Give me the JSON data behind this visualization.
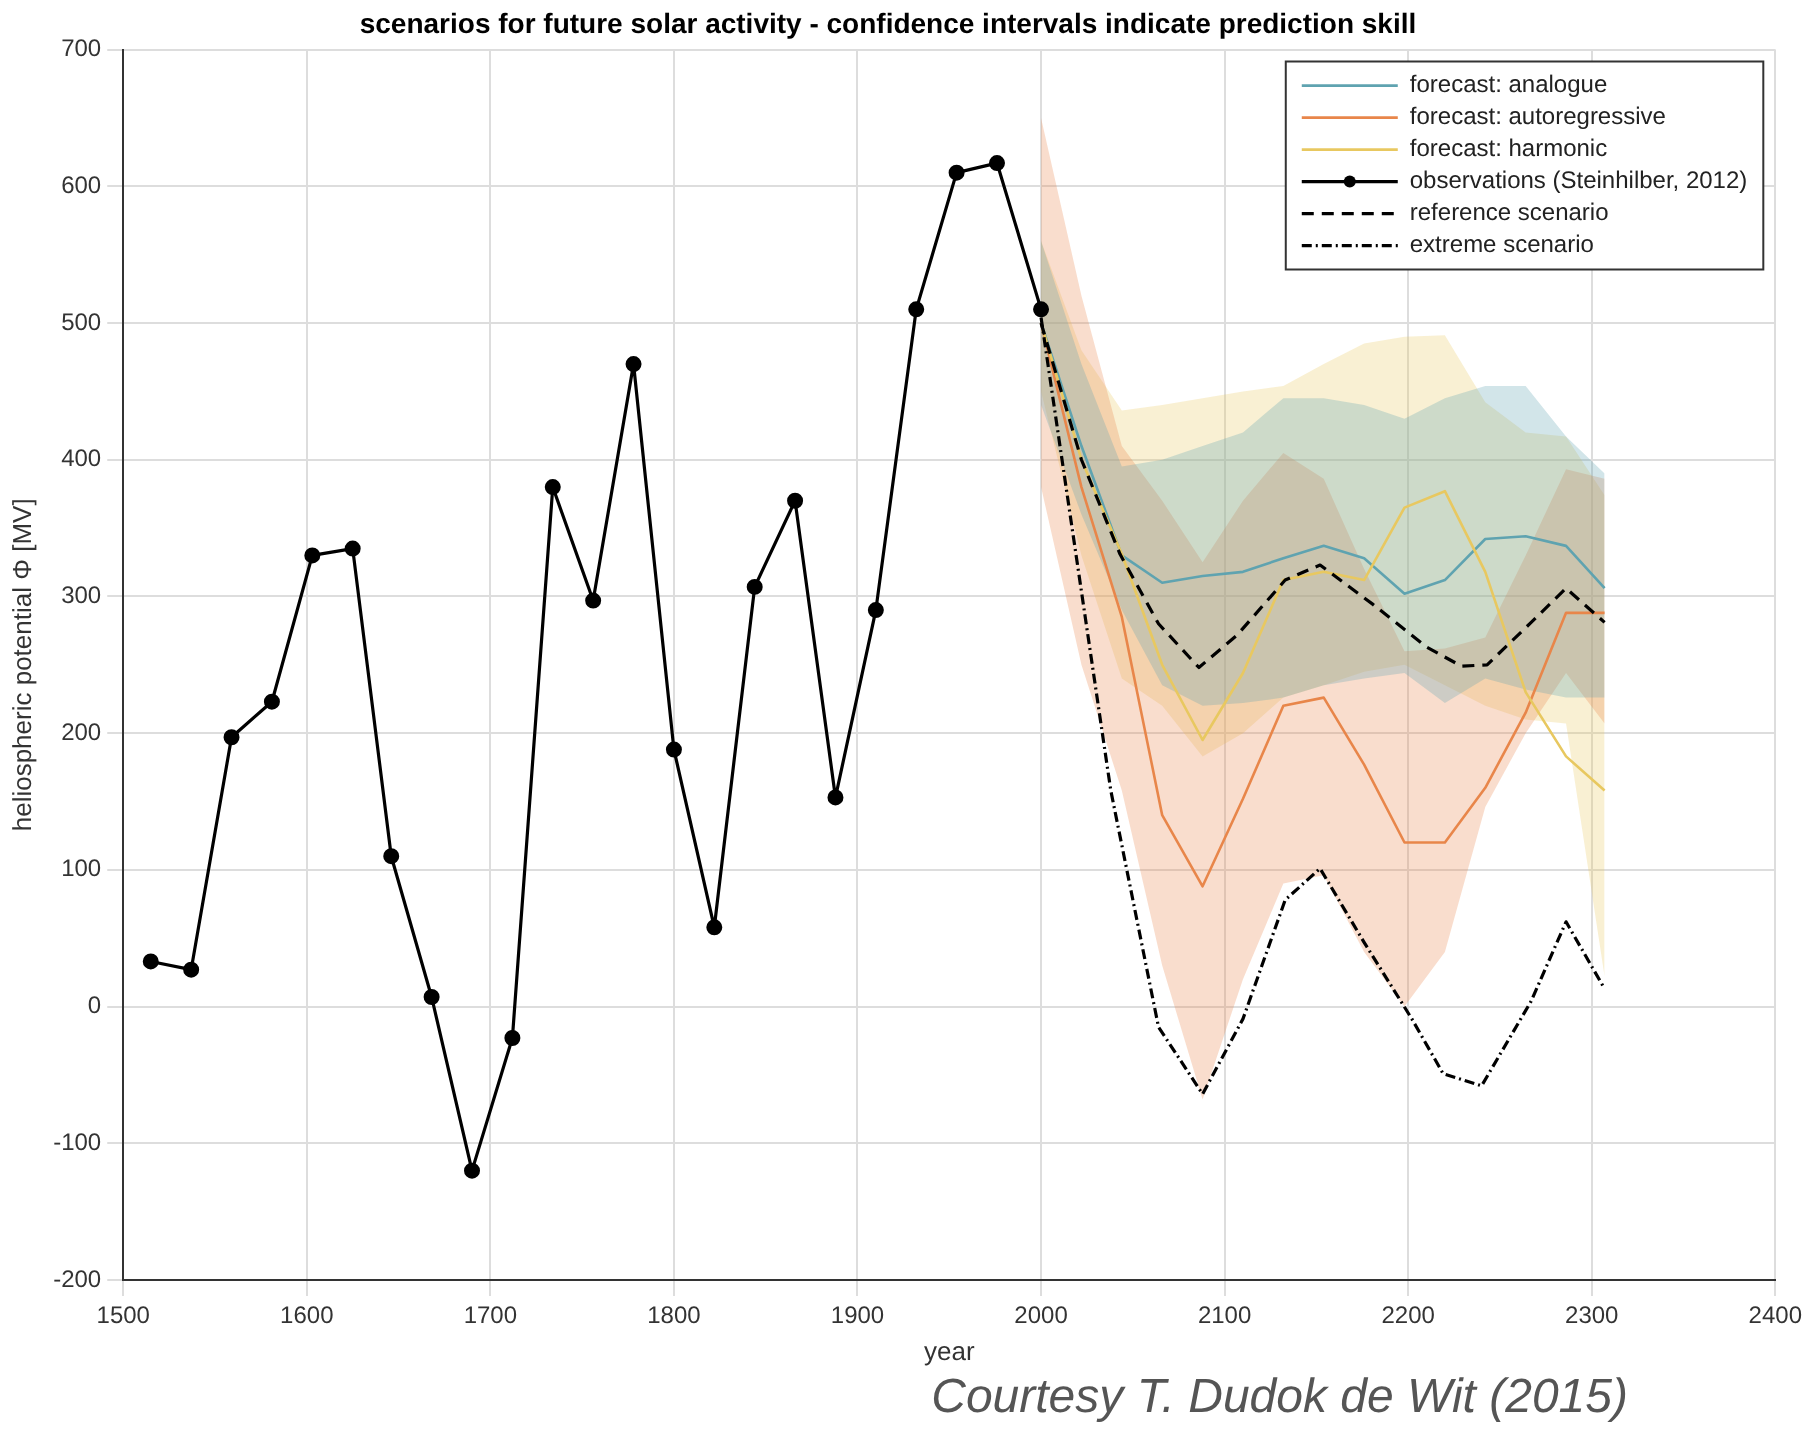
{
  "chart_data": {
    "type": "line",
    "title": "scenarios for future solar activity - confidence intervals indicate prediction skill",
    "xlabel": "year",
    "ylabel": "heliospheric potential Φ [MV]",
    "xlim": [
      1500,
      2400
    ],
    "xticks": [
      1500,
      1600,
      1700,
      1800,
      1900,
      2000,
      2100,
      2200,
      2300,
      2400
    ],
    "ylim": [
      -200,
      700
    ],
    "yticks": [
      -200,
      -100,
      0,
      100,
      200,
      300,
      400,
      500,
      600,
      700
    ],
    "grid": true,
    "legend": "top right",
    "annotations": [
      "Courtesy T. Dudok de Wit (2015)"
    ],
    "series": [
      {
        "name": "forecast: analogue",
        "color": "#5fa3b0",
        "marker": "none",
        "line_style": "solid",
        "x": [
          2000,
          2022,
          2044,
          2066,
          2088,
          2110,
          2132,
          2154,
          2176,
          2198,
          2220,
          2242,
          2264,
          2286,
          2307
        ],
        "values": [
          500,
          410,
          330,
          310,
          315,
          318,
          328,
          337,
          328,
          302,
          312,
          342,
          344,
          337,
          306
        ],
        "upper": [
          560,
          470,
          395,
          400,
          410,
          420,
          445,
          445,
          440,
          430,
          445,
          454,
          454,
          417,
          390
        ],
        "lower": [
          440,
          360,
          290,
          235,
          220,
          222,
          226,
          235,
          240,
          244,
          222,
          240,
          232,
          226,
          226
        ]
      },
      {
        "name": "forecast: autoregressive",
        "color": "#e8864a",
        "marker": "none",
        "line_style": "solid",
        "x": [
          2000,
          2022,
          2044,
          2066,
          2088,
          2110,
          2132,
          2154,
          2176,
          2198,
          2220,
          2242,
          2264,
          2286,
          2307
        ],
        "values": [
          500,
          380,
          285,
          140,
          88,
          152,
          220,
          226,
          177,
          120,
          120,
          160,
          215,
          288,
          288
        ],
        "upper": [
          650,
          520,
          410,
          370,
          325,
          370,
          405,
          386,
          320,
          260,
          262,
          270,
          330,
          393,
          386
        ],
        "lower": [
          380,
          250,
          158,
          30,
          -68,
          20,
          90,
          96,
          40,
          0,
          40,
          146,
          200,
          244,
          207
        ]
      },
      {
        "name": "forecast: harmonic",
        "color": "#e8c860",
        "marker": "none",
        "line_style": "solid",
        "x": [
          2000,
          2022,
          2044,
          2066,
          2088,
          2110,
          2132,
          2154,
          2176,
          2198,
          2220,
          2242,
          2264,
          2286,
          2307
        ],
        "values": [
          500,
          400,
          331,
          250,
          195,
          244,
          312,
          318,
          312,
          365,
          377,
          318,
          230,
          183,
          158
        ],
        "upper": [
          560,
          480,
          436,
          440,
          445,
          450,
          454,
          470,
          485,
          490,
          491,
          442,
          420,
          417,
          374
        ],
        "lower": [
          450,
          330,
          240,
          220,
          183,
          200,
          226,
          235,
          245,
          250,
          235,
          220,
          210,
          207,
          22
        ]
      },
      {
        "name": "observations (Steinhilber, 2012)",
        "color": "#000000",
        "marker": "circle",
        "line_style": "solid",
        "x": [
          1515,
          1537,
          1559,
          1581,
          1603,
          1625,
          1646,
          1668,
          1690,
          1712,
          1734,
          1756,
          1778,
          1800,
          1822,
          1844,
          1866,
          1888,
          1910,
          1932,
          1954,
          1976,
          2000
        ],
        "values": [
          33,
          27,
          197,
          223,
          330,
          335,
          110,
          7,
          -120,
          -23,
          380,
          297,
          470,
          188,
          58,
          307,
          370,
          153,
          290,
          510,
          610,
          617,
          510
        ]
      },
      {
        "name": "reference scenario",
        "color": "#000000",
        "marker": "none",
        "line_style": "dashed",
        "x": [
          2000,
          2022,
          2043,
          2064,
          2086,
          2107,
          2133,
          2152,
          2181,
          2210,
          2229,
          2243,
          2267,
          2286,
          2307
        ],
        "values": [
          500,
          400,
          331,
          280,
          248,
          272,
          312,
          323,
          294,
          263,
          249,
          250,
          281,
          306,
          281
        ]
      },
      {
        "name": "extreme scenario",
        "color": "#000000",
        "marker": "none",
        "line_style": "dotted",
        "x": [
          2000,
          2038,
          2064,
          2088,
          2110,
          2133,
          2152,
          2176,
          2202,
          2219,
          2240,
          2267,
          2286,
          2307
        ],
        "values": [
          504,
          158,
          -15,
          -64,
          -9,
          78,
          101,
          47,
          -9,
          -49,
          -58,
          4,
          62,
          13
        ]
      }
    ]
  }
}
